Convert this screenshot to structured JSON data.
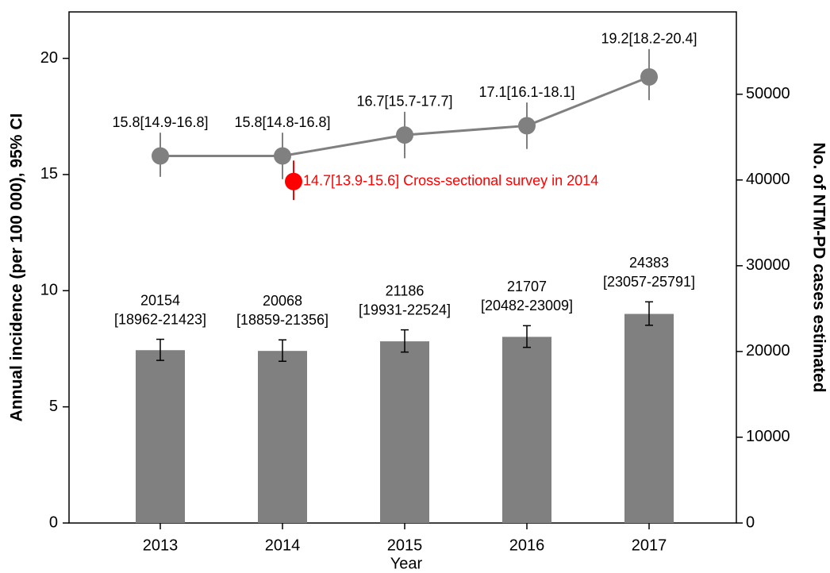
{
  "chart_data": {
    "type": "combo",
    "x_label": "Year",
    "y_label": "Annual incidence (per 100 000), 95% CI",
    "y2_label": "No. of NTM-PD cases estimated",
    "categories": [
      "2013",
      "2014",
      "2015",
      "2016",
      "2017"
    ],
    "ylim": [
      0,
      22
    ],
    "yticks": [
      0,
      5,
      10,
      15,
      20
    ],
    "y2lim": [
      0,
      59600
    ],
    "y2ticks": [
      0,
      10000,
      20000,
      30000,
      40000,
      50000
    ],
    "series": [
      {
        "type": "bar",
        "axis": "y2",
        "color": "#808080",
        "values": [
          20154,
          20068,
          21186,
          21707,
          24383
        ],
        "ci_low": [
          18962,
          18859,
          19931,
          20482,
          23057
        ],
        "ci_high": [
          21423,
          21356,
          22524,
          23009,
          25791
        ],
        "interval_labels": [
          "[18962-21423]",
          "[18859-21356]",
          "[19931-22524]",
          "[20482-23009]",
          "[23057-25791]"
        ]
      },
      {
        "type": "line",
        "color": "#808080",
        "values": [
          15.8,
          15.8,
          16.7,
          17.1,
          19.2
        ],
        "ci_low": [
          14.9,
          14.8,
          15.7,
          16.1,
          18.2
        ],
        "ci_high": [
          16.8,
          16.8,
          17.7,
          18.1,
          20.4
        ],
        "value_labels": [
          "15.8[14.9-16.8]",
          "15.8[14.8-16.8]",
          "16.7[15.7-17.7]",
          "17.1[16.1-18.1]",
          "19.2[18.2-20.4]"
        ]
      }
    ],
    "annotation": {
      "color": "#ff0000",
      "value": 14.7,
      "ci_low": 13.9,
      "ci_high": 15.6,
      "label": "14.7[13.9-15.6] Cross-sectional survey in 2014"
    }
  }
}
